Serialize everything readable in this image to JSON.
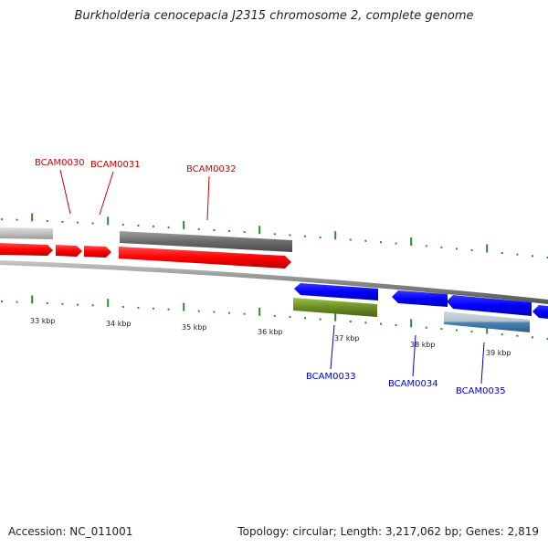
{
  "header": {
    "title": "Burkholderia cenocepacia J2315 chromosome 2, complete genome"
  },
  "footer": {
    "accession": "Accession: NC_011001",
    "stats": "Topology: circular; Length: 3,217,062 bp; Genes: 2,819"
  },
  "colors": {
    "forward_gene": "#ff0000",
    "reverse_gene": "#0000ff",
    "forward_label": "#cc0000",
    "reverse_label": "#0000cc",
    "gc_tick": "#2e8b2e",
    "backbone": "#888888",
    "grey_feature": "#707070",
    "light_grey_feature": "#c0c0c0",
    "green_feature": "#6b8e23",
    "steelblue_feature": "#4682b4"
  },
  "scale_labels": [
    "33 kbp",
    "34 kbp",
    "35 kbp",
    "36 kbp",
    "37 kbp",
    "38 kbp",
    "39 kbp"
  ],
  "genes": {
    "forward": [
      "BCAM0030",
      "BCAM0031",
      "BCAM0032"
    ],
    "reverse": [
      "BCAM0033",
      "BCAM0034",
      "BCAM0035"
    ]
  }
}
